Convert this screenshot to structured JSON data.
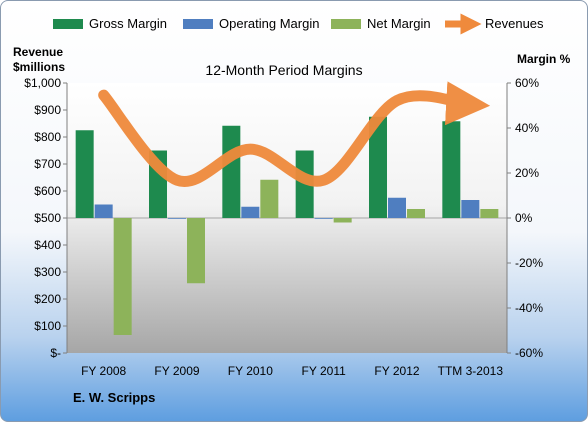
{
  "chart_data": {
    "type": "bar",
    "title": "12-Month Period Margins",
    "categories": [
      "FY 2008",
      "FY 2009",
      "FY 2010",
      "FY 2011",
      "FY 2012",
      "TTM 3-2013"
    ],
    "series": [
      {
        "name": "Gross Margin",
        "axis": "right",
        "values": [
          39,
          30,
          41,
          30,
          45,
          43
        ],
        "color": "#1e8a4e"
      },
      {
        "name": "Operating Margin",
        "axis": "right",
        "values": [
          6,
          0,
          5,
          0,
          9,
          8
        ],
        "color": "#4f7ec0"
      },
      {
        "name": "Net Margin",
        "axis": "right",
        "values": [
          -52,
          -29,
          17,
          -2,
          4,
          4
        ],
        "color": "#8db35a"
      },
      {
        "name": "Revenues",
        "type": "line",
        "axis": "left",
        "values": [
          955,
          640,
          755,
          640,
          935,
          920
        ],
        "color": "#ef8a3c"
      }
    ],
    "left_axis": {
      "title_line1": "Revenue",
      "title_line2": "$millions",
      "min": 0,
      "max": 1000,
      "ticks": [
        "$-",
        "$100",
        "$200",
        "$300",
        "$400",
        "$500",
        "$600",
        "$700",
        "$800",
        "$900",
        "$1,000"
      ]
    },
    "right_axis": {
      "title": "Margin %",
      "min": -60,
      "max": 60,
      "ticks": [
        "-60%",
        "-40%",
        "-20%",
        "0%",
        "20%",
        "40%",
        "60%"
      ]
    },
    "legend_position": "top",
    "grid": false
  },
  "footer": {
    "company": "E. W. Scripps"
  }
}
